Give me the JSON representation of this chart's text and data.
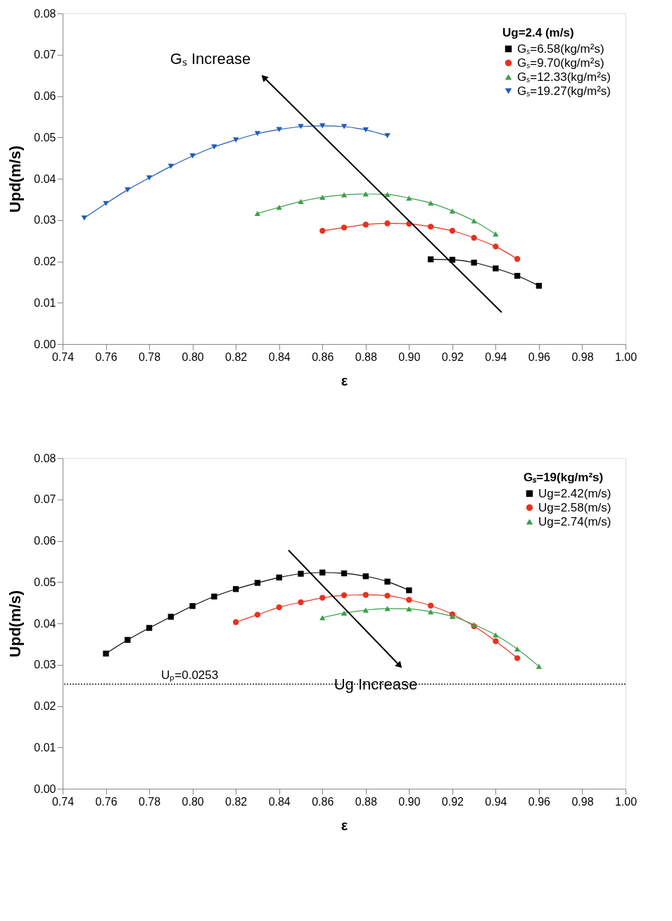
{
  "chart_data": [
    {
      "type": "line",
      "xlabel": "ε",
      "ylabel": "Upd(m/s)",
      "legend_title": "Ug=2.4 (m/s)",
      "legend": "top right",
      "grid": false,
      "xlim": [
        0.74,
        1.0
      ],
      "xticks": [
        0.74,
        0.76,
        0.78,
        {
          "value": 0.8,
          "label": "0.80"
        },
        0.82,
        0.84,
        0.86,
        0.88,
        {
          "value": 0.9,
          "label": "0.90"
        },
        0.92,
        0.94,
        0.96,
        0.98,
        {
          "value": 1.0,
          "label": "1.00"
        }
      ],
      "ylim": [
        0.0,
        0.08
      ],
      "yticks": [
        {
          "value": 0.0,
          "label": "0.00"
        },
        0.01,
        0.02,
        0.03,
        0.04,
        0.05,
        0.06,
        0.07,
        0.08
      ],
      "annotations": [
        "Gₛ Increase"
      ],
      "series": [
        {
          "name": "Gₛ=6.58(kg/m²s)",
          "color": "#000000",
          "marker": "square",
          "x": [
            0.91,
            0.92,
            0.93,
            0.94,
            0.95,
            0.96
          ],
          "values": [
            0.0205,
            0.0204,
            0.0197,
            0.0183,
            0.0165,
            0.0141
          ]
        },
        {
          "name": "Gₛ=9.70(kg/m²s)",
          "color": "#e8321e",
          "marker": "circle",
          "x": [
            0.86,
            0.87,
            0.88,
            0.89,
            0.9,
            0.91,
            0.92,
            0.93,
            0.94,
            0.95
          ],
          "values": [
            0.0274,
            0.0282,
            0.0289,
            0.0292,
            0.0291,
            0.0284,
            0.0274,
            0.0257,
            0.0236,
            0.0206
          ]
        },
        {
          "name": "Gₛ=12.33(kg/m²s)",
          "color": "#3aa04a",
          "marker": "triangle",
          "x": [
            0.83,
            0.84,
            0.85,
            0.86,
            0.87,
            0.88,
            0.89,
            0.9,
            0.91,
            0.92,
            0.93,
            0.94
          ],
          "values": [
            0.0316,
            0.0331,
            0.0345,
            0.0355,
            0.0361,
            0.0363,
            0.0362,
            0.0353,
            0.0341,
            0.0322,
            0.0298,
            0.0266
          ]
        },
        {
          "name": "Gₛ=19.27(kg/m²s)",
          "color": "#1f5bb8",
          "marker": "triangle-down",
          "x": [
            0.75,
            0.76,
            0.77,
            0.78,
            0.79,
            0.8,
            0.81,
            0.82,
            0.83,
            0.84,
            0.85,
            0.86,
            0.87,
            0.88,
            0.89
          ],
          "values": [
            0.0305,
            0.034,
            0.0373,
            0.0402,
            0.043,
            0.0455,
            0.0477,
            0.0494,
            0.0509,
            0.0519,
            0.0526,
            0.0528,
            0.0526,
            0.0518,
            0.0504
          ]
        }
      ]
    },
    {
      "type": "line",
      "xlabel": "ε",
      "ylabel": "Upd(m/s)",
      "legend_title": "Gₛ=19(kg/m²s)",
      "legend": "top right",
      "grid": false,
      "xlim": [
        0.74,
        1.0
      ],
      "xticks": [
        0.74,
        0.76,
        0.78,
        {
          "value": 0.8,
          "label": "0.80"
        },
        0.82,
        0.84,
        0.86,
        0.88,
        {
          "value": 0.9,
          "label": "0.90"
        },
        0.92,
        0.94,
        0.96,
        0.98,
        {
          "value": 1.0,
          "label": "1.00"
        }
      ],
      "ylim": [
        0.0,
        0.08
      ],
      "yticks": [
        {
          "value": 0.0,
          "label": "0.00"
        },
        0.01,
        0.02,
        0.03,
        0.04,
        0.05,
        0.06,
        0.07,
        0.08
      ],
      "annotations": [
        "Ug Increase"
      ],
      "ref_lines": [
        {
          "axis": "y",
          "value": 0.0253,
          "label": "Uₚ=0.0253",
          "line_style": "dotted",
          "color": "#000000"
        }
      ],
      "series": [
        {
          "name": "Ug=2.42(m/s)",
          "color": "#000000",
          "marker": "square",
          "x": [
            0.76,
            0.77,
            0.78,
            0.79,
            0.8,
            0.81,
            0.82,
            0.83,
            0.84,
            0.85,
            0.86,
            0.87,
            0.88,
            0.89,
            0.9
          ],
          "values": [
            0.0327,
            0.036,
            0.0389,
            0.0416,
            0.0442,
            0.0465,
            0.0483,
            0.0498,
            0.0511,
            0.052,
            0.0523,
            0.0521,
            0.0514,
            0.0501,
            0.048
          ]
        },
        {
          "name": "Ug=2.58(m/s)",
          "color": "#e8321e",
          "marker": "circle",
          "x": [
            0.82,
            0.83,
            0.84,
            0.85,
            0.86,
            0.87,
            0.88,
            0.89,
            0.9,
            0.91,
            0.92,
            0.93,
            0.94,
            0.95
          ],
          "values": [
            0.0403,
            0.0421,
            0.0439,
            0.0451,
            0.0462,
            0.0468,
            0.0469,
            0.0467,
            0.0457,
            0.0443,
            0.0422,
            0.0393,
            0.0357,
            0.0316
          ]
        },
        {
          "name": "Ug=2.74(m/s)",
          "color": "#3aa04a",
          "marker": "triangle",
          "x": [
            0.86,
            0.87,
            0.88,
            0.89,
            0.9,
            0.91,
            0.92,
            0.93,
            0.94,
            0.95,
            0.96
          ],
          "values": [
            0.0414,
            0.0425,
            0.0432,
            0.0436,
            0.0435,
            0.0428,
            0.0417,
            0.0397,
            0.0372,
            0.0338,
            0.0296
          ]
        }
      ]
    }
  ]
}
